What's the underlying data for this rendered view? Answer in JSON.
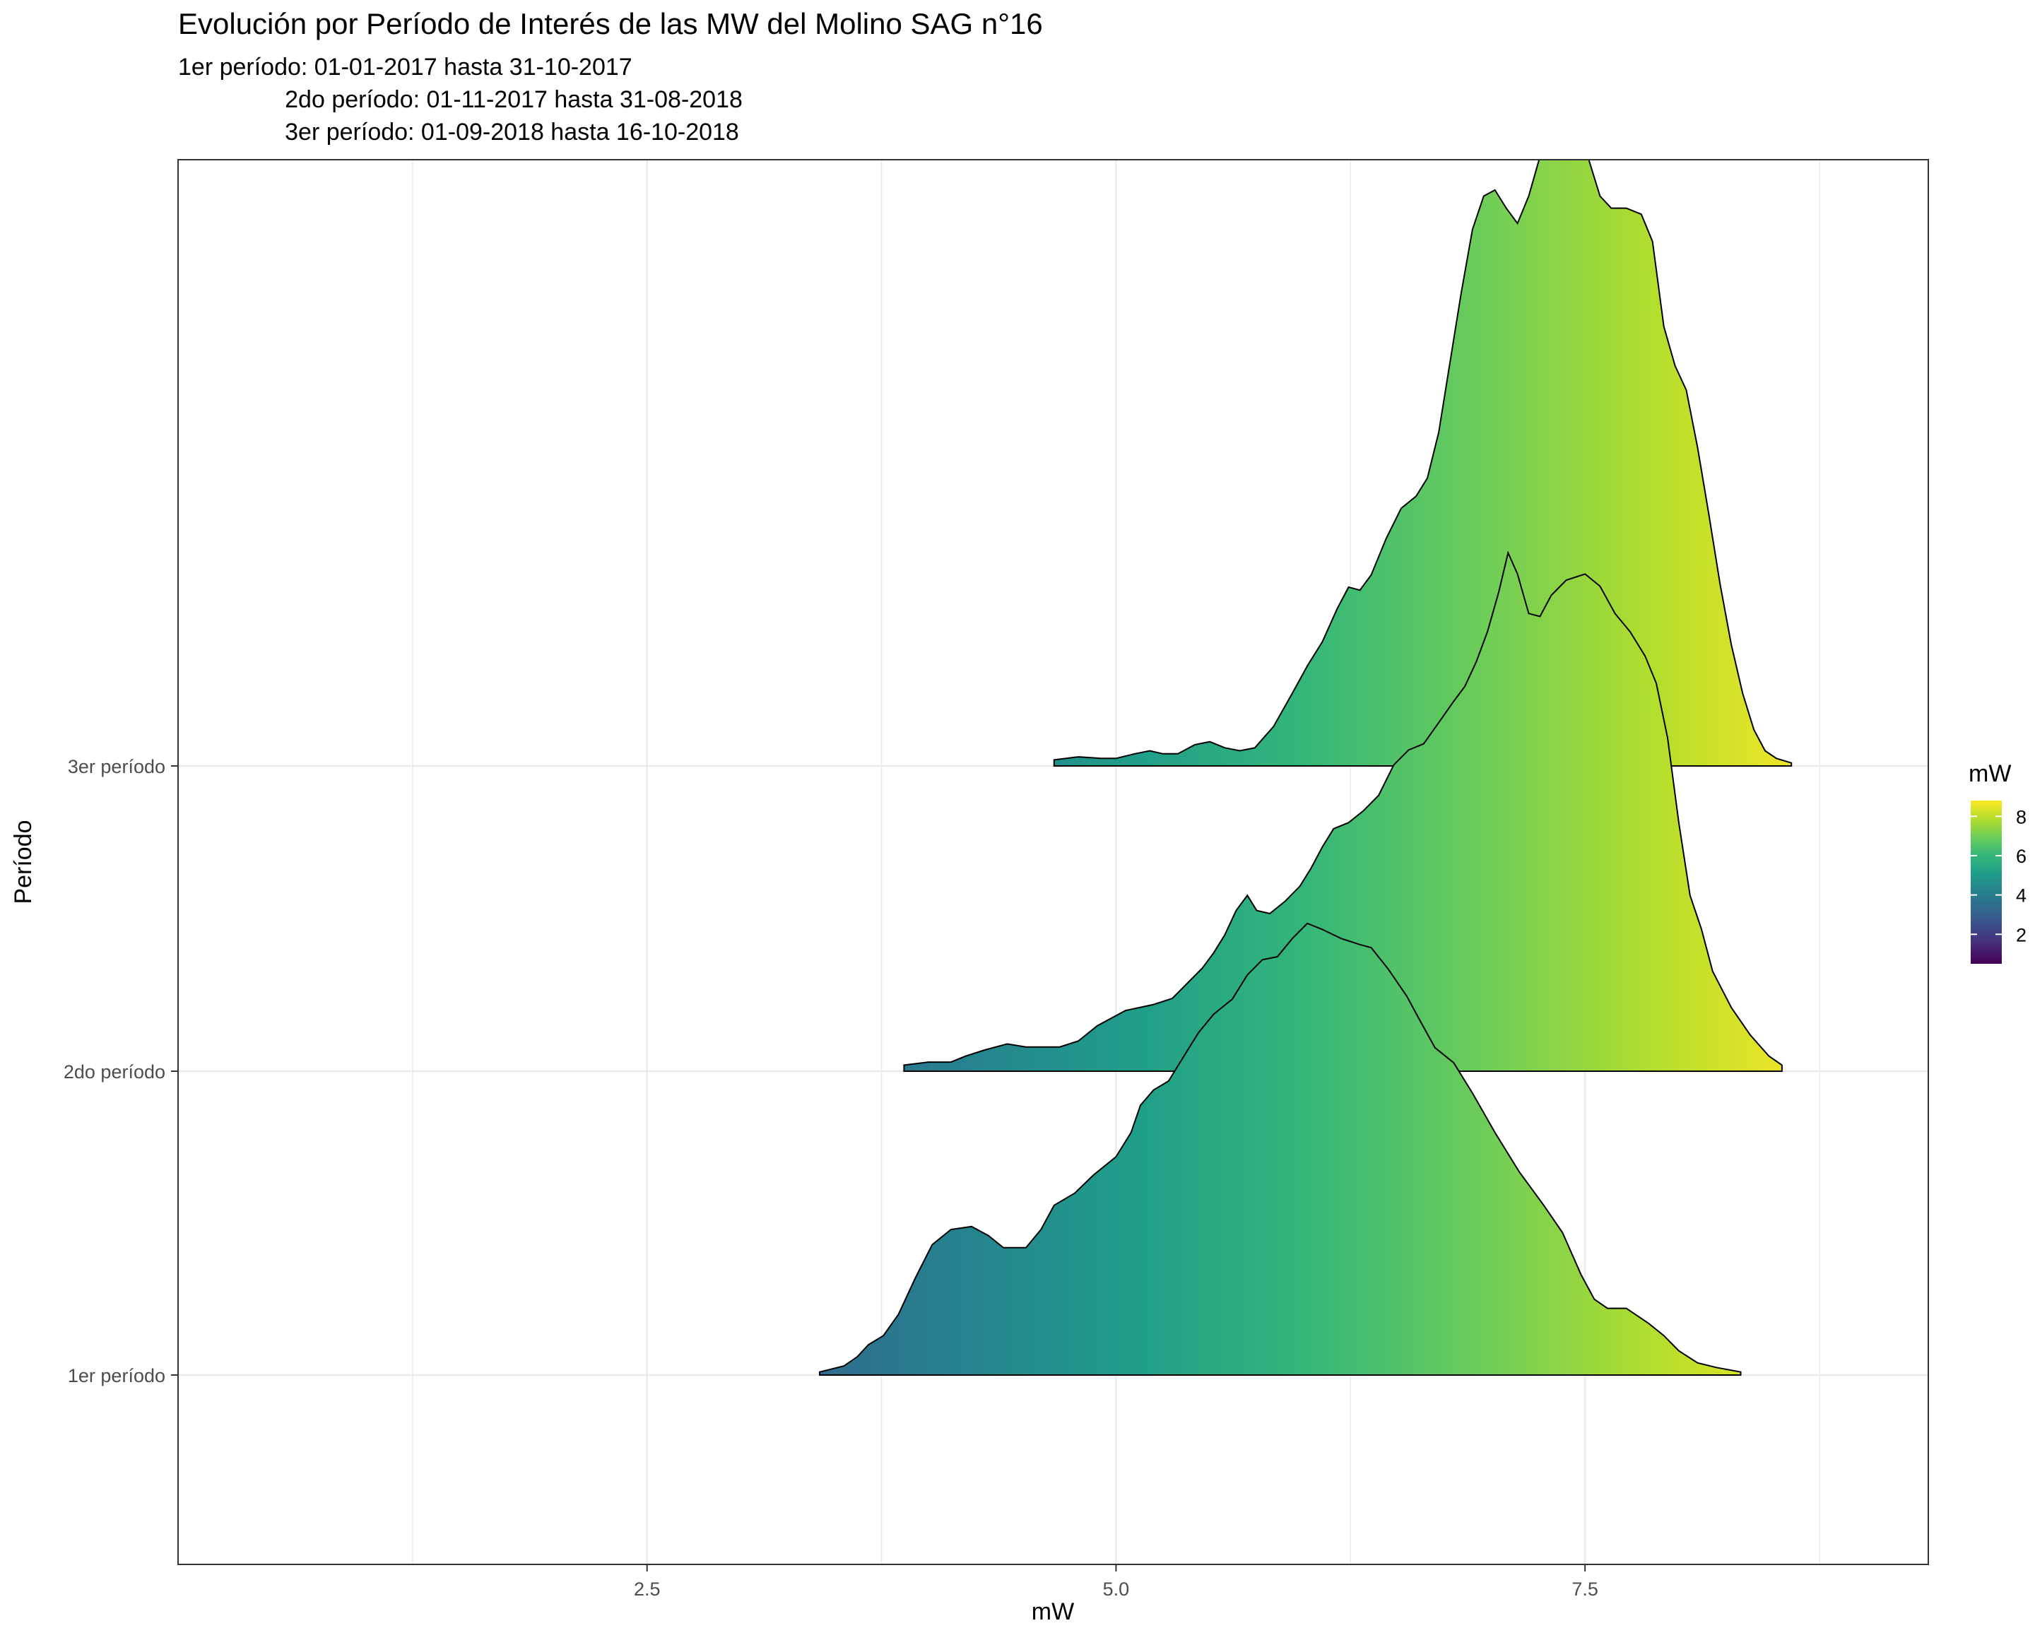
{
  "chart_data": {
    "type": "ridgeline-density",
    "title": "Evolución por Período de Interés de las MW del Molino SAG n°16",
    "subtitle": "1er período: 01-01-2017 hasta 31-10-2017\n                2do período: 01-11-2017 hasta 31-08-2018\n                3er período: 01-09-2018 hasta 16-10-2018",
    "xlabel": "mW",
    "ylabel": "Período",
    "xlim": [
      0.0,
      9.33
    ],
    "x_ticks": [
      2.5,
      5.0,
      7.5
    ],
    "x_tick_labels": [
      "2.5",
      "5.0",
      "7.5"
    ],
    "x_minor_grid": [
      1.25,
      3.75,
      6.25,
      8.75
    ],
    "grid": true,
    "fill_scale": {
      "title": "mW",
      "palette": "viridis",
      "range": [
        0.5,
        8.8
      ],
      "breaks": [
        2,
        4,
        6,
        8
      ],
      "labels": [
        "2",
        "4",
        "6",
        "8"
      ],
      "legend_position": "right"
    },
    "colors": {
      "viridis": [
        "#440154",
        "#482878",
        "#3E4A89",
        "#31688E",
        "#26828E",
        "#1F9E89",
        "#35B779",
        "#6DCD59",
        "#B4DE2C",
        "#FDE725"
      ],
      "outline": "#000000",
      "gridline": "#ebebeb",
      "panel_border": "#333333"
    },
    "series": [
      {
        "name": "1er período",
        "baseline_index": 1,
        "points": [
          [
            3.42,
            0.01
          ],
          [
            3.55,
            0.03
          ],
          [
            3.62,
            0.06
          ],
          [
            3.68,
            0.1
          ],
          [
            3.76,
            0.13
          ],
          [
            3.84,
            0.2
          ],
          [
            3.93,
            0.32
          ],
          [
            4.02,
            0.43
          ],
          [
            4.12,
            0.48
          ],
          [
            4.23,
            0.49
          ],
          [
            4.32,
            0.46
          ],
          [
            4.4,
            0.42
          ],
          [
            4.52,
            0.42
          ],
          [
            4.6,
            0.48
          ],
          [
            4.67,
            0.56
          ],
          [
            4.78,
            0.6
          ],
          [
            4.88,
            0.66
          ],
          [
            5.0,
            0.72
          ],
          [
            5.08,
            0.8
          ],
          [
            5.13,
            0.89
          ],
          [
            5.2,
            0.94
          ],
          [
            5.28,
            0.97
          ],
          [
            5.36,
            1.05
          ],
          [
            5.44,
            1.13
          ],
          [
            5.52,
            1.19
          ],
          [
            5.62,
            1.24
          ],
          [
            5.7,
            1.32
          ],
          [
            5.78,
            1.37
          ],
          [
            5.86,
            1.38
          ],
          [
            5.94,
            1.44
          ],
          [
            6.02,
            1.49
          ],
          [
            6.1,
            1.47
          ],
          [
            6.2,
            1.44
          ],
          [
            6.3,
            1.42
          ],
          [
            6.36,
            1.41
          ],
          [
            6.45,
            1.34
          ],
          [
            6.55,
            1.25
          ],
          [
            6.62,
            1.17
          ],
          [
            6.7,
            1.08
          ],
          [
            6.8,
            1.03
          ],
          [
            6.9,
            0.93
          ],
          [
            7.02,
            0.8
          ],
          [
            7.15,
            0.67
          ],
          [
            7.28,
            0.56
          ],
          [
            7.38,
            0.47
          ],
          [
            7.48,
            0.33
          ],
          [
            7.55,
            0.25
          ],
          [
            7.62,
            0.22
          ],
          [
            7.72,
            0.22
          ],
          [
            7.84,
            0.17
          ],
          [
            7.92,
            0.13
          ],
          [
            8.0,
            0.08
          ],
          [
            8.1,
            0.04
          ],
          [
            8.2,
            0.025
          ],
          [
            8.33,
            0.01
          ]
        ]
      },
      {
        "name": "2do período",
        "baseline_index": 2,
        "points": [
          [
            3.87,
            0.02
          ],
          [
            4.0,
            0.03
          ],
          [
            4.12,
            0.03
          ],
          [
            4.2,
            0.05
          ],
          [
            4.3,
            0.07
          ],
          [
            4.42,
            0.09
          ],
          [
            4.52,
            0.08
          ],
          [
            4.62,
            0.08
          ],
          [
            4.7,
            0.08
          ],
          [
            4.8,
            0.1
          ],
          [
            4.9,
            0.15
          ],
          [
            5.05,
            0.2
          ],
          [
            5.2,
            0.22
          ],
          [
            5.3,
            0.24
          ],
          [
            5.38,
            0.29
          ],
          [
            5.46,
            0.34
          ],
          [
            5.52,
            0.39
          ],
          [
            5.58,
            0.45
          ],
          [
            5.64,
            0.53
          ],
          [
            5.7,
            0.58
          ],
          [
            5.75,
            0.53
          ],
          [
            5.82,
            0.52
          ],
          [
            5.9,
            0.56
          ],
          [
            5.98,
            0.61
          ],
          [
            6.04,
            0.67
          ],
          [
            6.1,
            0.74
          ],
          [
            6.16,
            0.8
          ],
          [
            6.24,
            0.82
          ],
          [
            6.32,
            0.86
          ],
          [
            6.4,
            0.91
          ],
          [
            6.48,
            1.01
          ],
          [
            6.56,
            1.06
          ],
          [
            6.64,
            1.08
          ],
          [
            6.72,
            1.15
          ],
          [
            6.8,
            1.22
          ],
          [
            6.86,
            1.27
          ],
          [
            6.92,
            1.35
          ],
          [
            6.98,
            1.45
          ],
          [
            7.04,
            1.58
          ],
          [
            7.09,
            1.71
          ],
          [
            7.14,
            1.64
          ],
          [
            7.2,
            1.51
          ],
          [
            7.26,
            1.5
          ],
          [
            7.32,
            1.57
          ],
          [
            7.4,
            1.62
          ],
          [
            7.5,
            1.64
          ],
          [
            7.58,
            1.6
          ],
          [
            7.66,
            1.51
          ],
          [
            7.74,
            1.45
          ],
          [
            7.82,
            1.37
          ],
          [
            7.88,
            1.28
          ],
          [
            7.94,
            1.1
          ],
          [
            8.0,
            0.82
          ],
          [
            8.06,
            0.58
          ],
          [
            8.12,
            0.47
          ],
          [
            8.18,
            0.33
          ],
          [
            8.28,
            0.21
          ],
          [
            8.38,
            0.12
          ],
          [
            8.48,
            0.05
          ],
          [
            8.55,
            0.02
          ]
        ]
      },
      {
        "name": "3er período",
        "baseline_index": 3,
        "points": [
          [
            4.67,
            0.02
          ],
          [
            4.8,
            0.03
          ],
          [
            4.92,
            0.025
          ],
          [
            5.0,
            0.025
          ],
          [
            5.1,
            0.04
          ],
          [
            5.18,
            0.05
          ],
          [
            5.25,
            0.04
          ],
          [
            5.33,
            0.04
          ],
          [
            5.42,
            0.07
          ],
          [
            5.5,
            0.08
          ],
          [
            5.58,
            0.06
          ],
          [
            5.66,
            0.05
          ],
          [
            5.74,
            0.06
          ],
          [
            5.84,
            0.13
          ],
          [
            5.94,
            0.24
          ],
          [
            6.02,
            0.33
          ],
          [
            6.1,
            0.41
          ],
          [
            6.18,
            0.52
          ],
          [
            6.24,
            0.59
          ],
          [
            6.3,
            0.58
          ],
          [
            6.36,
            0.63
          ],
          [
            6.44,
            0.75
          ],
          [
            6.52,
            0.85
          ],
          [
            6.6,
            0.89
          ],
          [
            6.66,
            0.95
          ],
          [
            6.72,
            1.1
          ],
          [
            6.78,
            1.33
          ],
          [
            6.84,
            1.56
          ],
          [
            6.9,
            1.77
          ],
          [
            6.96,
            1.88
          ],
          [
            7.02,
            1.9
          ],
          [
            7.08,
            1.84
          ],
          [
            7.14,
            1.79
          ],
          [
            7.2,
            1.88
          ],
          [
            7.26,
            2.01
          ],
          [
            7.32,
            2.07
          ],
          [
            7.4,
            2.05
          ],
          [
            7.46,
            2.07
          ],
          [
            7.52,
            2.0
          ],
          [
            7.58,
            1.88
          ],
          [
            7.64,
            1.84
          ],
          [
            7.72,
            1.84
          ],
          [
            7.8,
            1.82
          ],
          [
            7.86,
            1.73
          ],
          [
            7.92,
            1.45
          ],
          [
            7.98,
            1.32
          ],
          [
            8.04,
            1.24
          ],
          [
            8.1,
            1.05
          ],
          [
            8.16,
            0.83
          ],
          [
            8.22,
            0.6
          ],
          [
            8.28,
            0.4
          ],
          [
            8.34,
            0.24
          ],
          [
            8.4,
            0.12
          ],
          [
            8.46,
            0.05
          ],
          [
            8.52,
            0.025
          ],
          [
            8.6,
            0.01
          ]
        ]
      }
    ],
    "y_categories": [
      "1er período",
      "2do período",
      "3er período"
    ]
  }
}
